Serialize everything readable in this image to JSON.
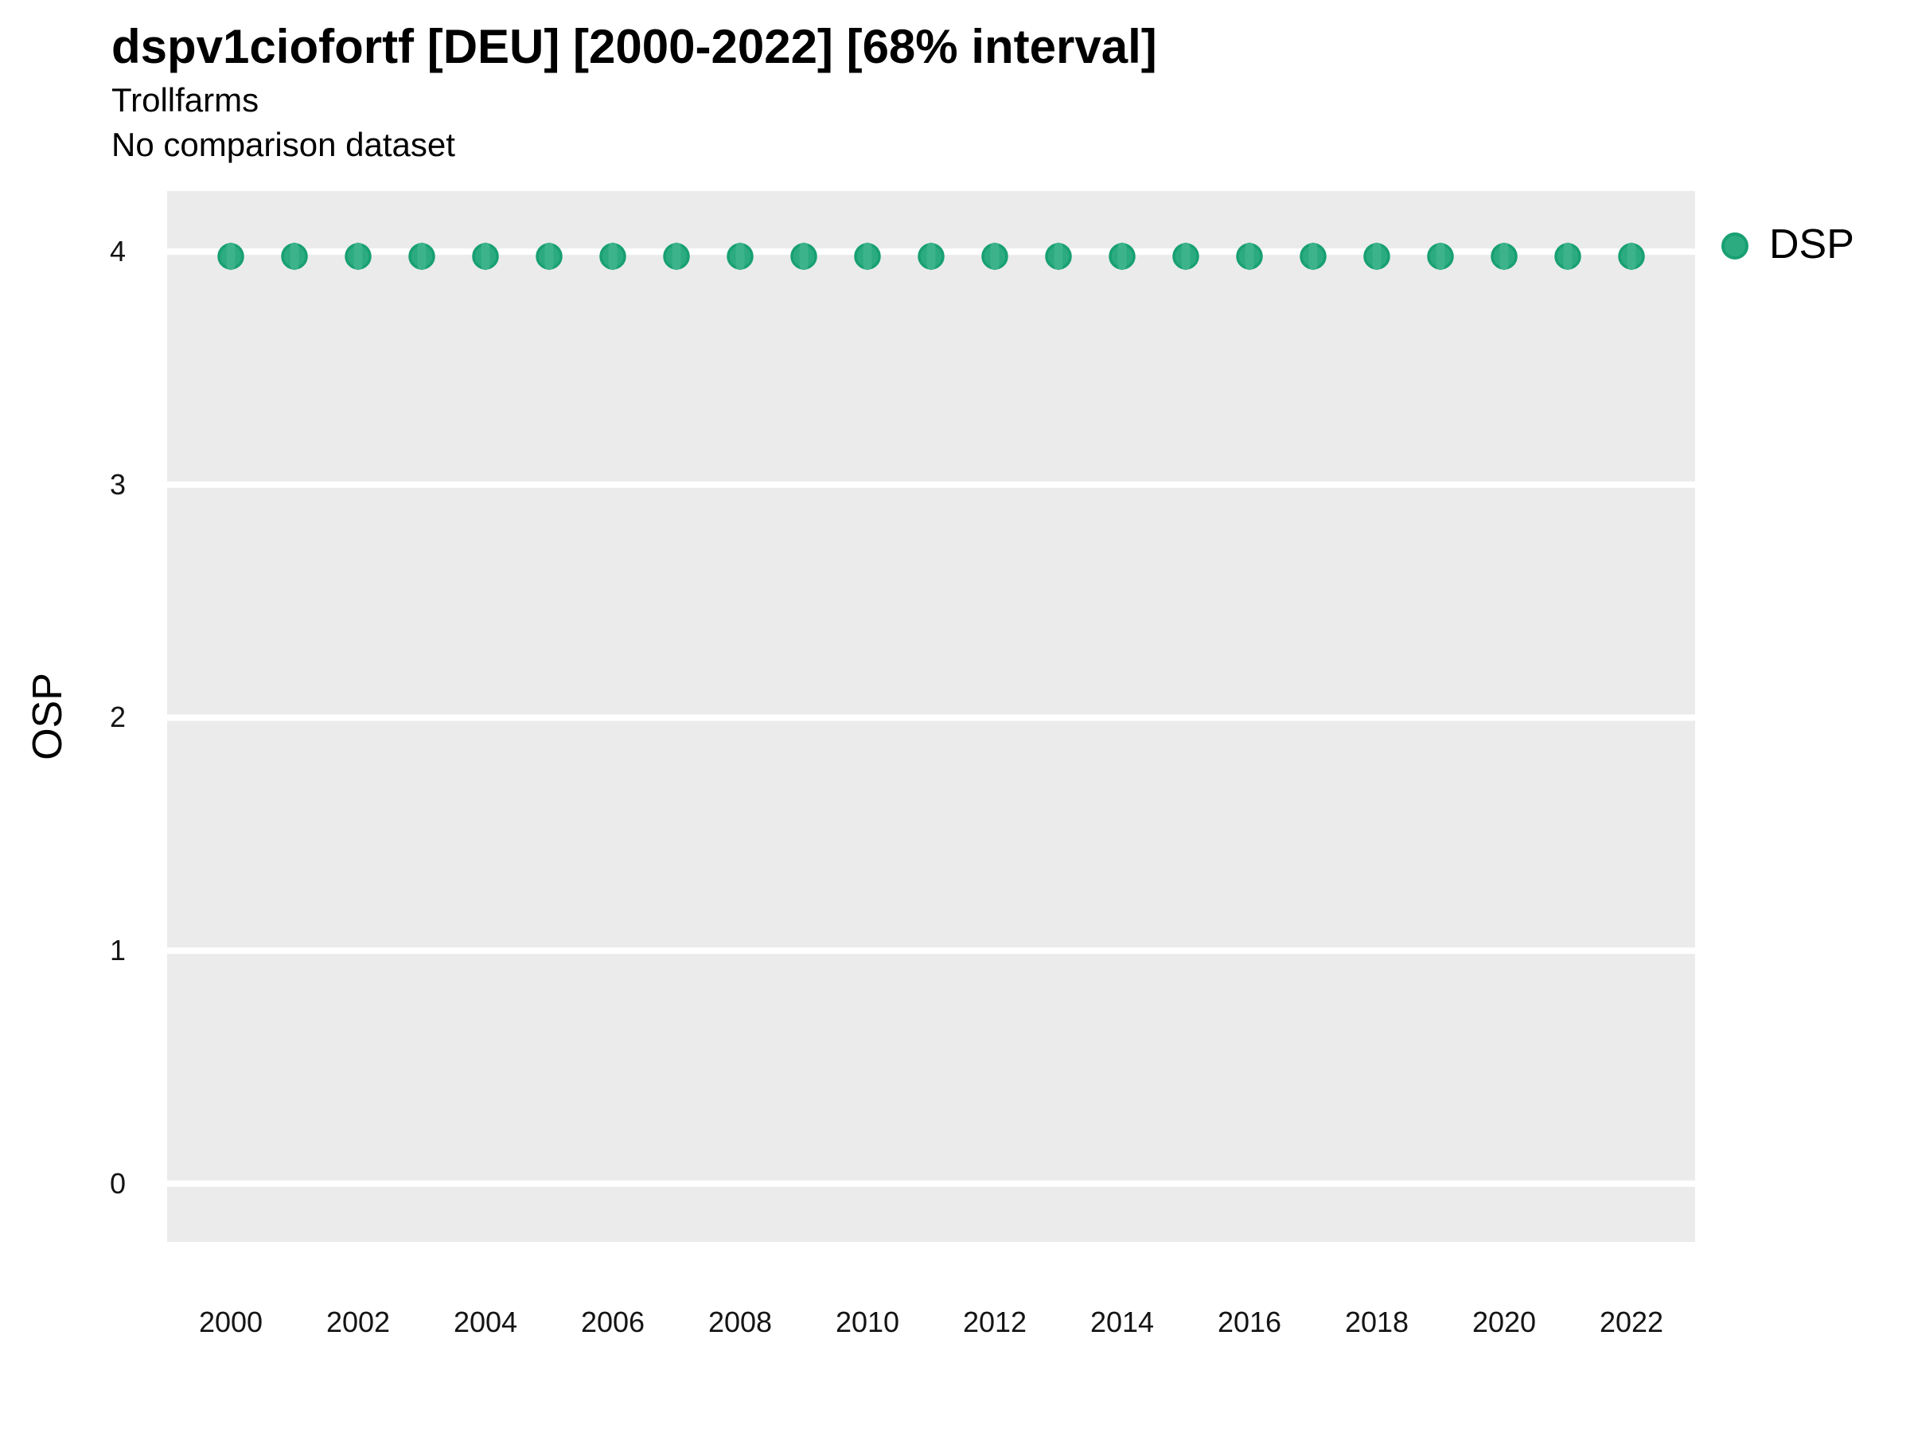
{
  "chart": {
    "title": "dspv1ciofortf [DEU] [2000-2022] [68% interval]",
    "subtitle_line1": "Trollfarms",
    "subtitle_line2": "No comparison dataset",
    "y_axis_label": "OSP",
    "legend": {
      "label": "DSP"
    }
  },
  "chart_data": {
    "type": "scatter",
    "title": "dspv1ciofortf [DEU] [2000-2022] [68% interval]",
    "subtitle": [
      "Trollfarms",
      "No comparison dataset"
    ],
    "xlabel": "",
    "ylabel": "OSP",
    "legend_position": "right",
    "grid": "major horizontal white gridlines on grey panel, no minor grid",
    "panel_bg": "#ebebeb",
    "gridline_color": "#ffffff",
    "point_fill": "#2cab80",
    "point_stroke": "#18a073",
    "ci_color": "#3cb38a",
    "interval": "68%",
    "x_domain": [
      1999,
      2023
    ],
    "y_domain": [
      -0.25,
      4.26
    ],
    "x_ticks": [
      2000,
      2002,
      2004,
      2006,
      2008,
      2010,
      2012,
      2014,
      2016,
      2018,
      2020,
      2022
    ],
    "y_ticks": [
      0,
      1,
      2,
      3,
      4
    ],
    "x": [
      2000,
      2001,
      2002,
      2003,
      2004,
      2005,
      2006,
      2007,
      2008,
      2009,
      2010,
      2011,
      2012,
      2013,
      2014,
      2015,
      2016,
      2017,
      2018,
      2019,
      2020,
      2021,
      2022
    ],
    "series": [
      {
        "name": "DSP",
        "values": [
          3.98,
          3.98,
          3.98,
          3.98,
          3.98,
          3.98,
          3.98,
          3.98,
          3.98,
          3.98,
          3.98,
          3.98,
          3.98,
          3.98,
          3.98,
          3.98,
          3.98,
          3.98,
          3.98,
          3.98,
          3.98,
          3.98,
          3.98
        ],
        "ci_low": [
          3.94,
          3.94,
          3.94,
          3.94,
          3.94,
          3.94,
          3.94,
          3.94,
          3.94,
          3.94,
          3.94,
          3.94,
          3.94,
          3.94,
          3.94,
          3.94,
          3.94,
          3.94,
          3.94,
          3.94,
          3.94,
          3.94,
          3.94
        ],
        "ci_high": [
          4.02,
          4.02,
          4.02,
          4.02,
          4.02,
          4.02,
          4.02,
          4.02,
          4.02,
          4.02,
          4.02,
          4.02,
          4.02,
          4.02,
          4.02,
          4.02,
          4.02,
          4.02,
          4.02,
          4.02,
          4.02,
          4.02,
          4.02
        ]
      }
    ]
  }
}
